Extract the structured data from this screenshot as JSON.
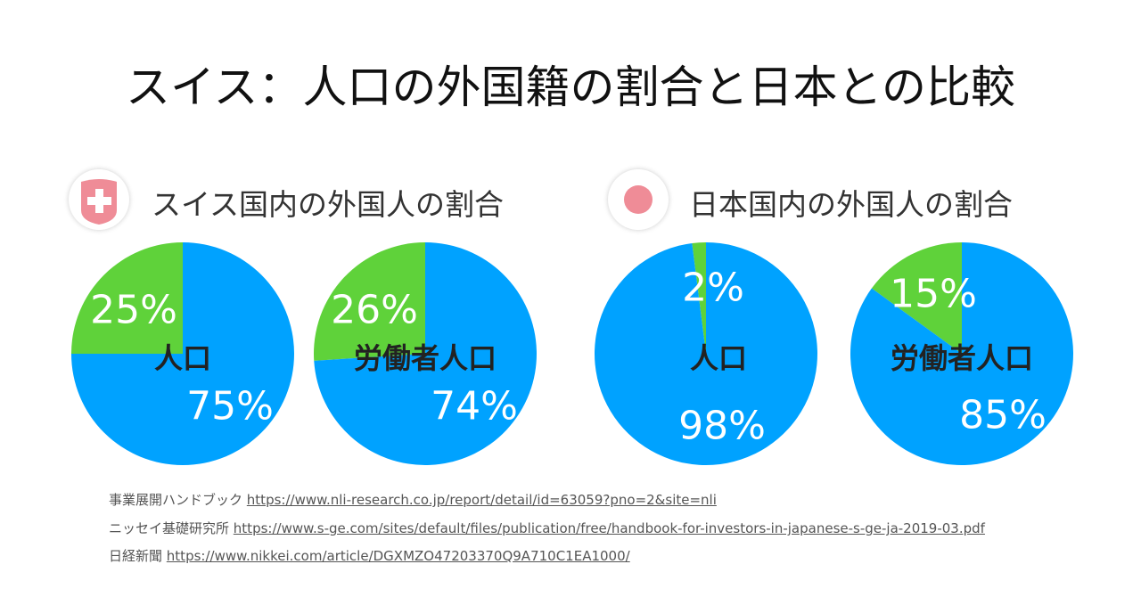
{
  "title": "スイス：人口の外国籍の割合と日本との比較",
  "colors": {
    "majority": "#00a2ff",
    "foreign": "#5fd23a",
    "flag": "#ef8c97"
  },
  "chart_data": [
    {
      "type": "pie",
      "group": "スイス国内の外国人の割合",
      "label": "人口",
      "slices": [
        {
          "value": 25,
          "label": "25%",
          "color": "#5fd23a"
        },
        {
          "value": 75,
          "label": "75%",
          "color": "#00a2ff"
        }
      ]
    },
    {
      "type": "pie",
      "group": "スイス国内の外国人の割合",
      "label": "労働者人口",
      "slices": [
        {
          "value": 26,
          "label": "26%",
          "color": "#5fd23a"
        },
        {
          "value": 74,
          "label": "74%",
          "color": "#00a2ff"
        }
      ]
    },
    {
      "type": "pie",
      "group": "日本国内の外国人の割合",
      "label": "人口",
      "slices": [
        {
          "value": 2,
          "label": "2%",
          "color": "#5fd23a"
        },
        {
          "value": 98,
          "label": "98%",
          "color": "#00a2ff"
        }
      ]
    },
    {
      "type": "pie",
      "group": "日本国内の外国人の割合",
      "label": "労働者人口",
      "slices": [
        {
          "value": 15,
          "label": "15%",
          "color": "#5fd23a"
        },
        {
          "value": 85,
          "label": "85%",
          "color": "#00a2ff"
        }
      ]
    }
  ],
  "groups": {
    "swiss": "スイス国内の外国人の割合",
    "japan": "日本国内の外国人の割合"
  },
  "sources": [
    {
      "name": "事業展開ハンドブック",
      "url": "https://www.nli-research.co.jp/report/detail/id=63059?pno=2&site=nli"
    },
    {
      "name": "ニッセイ基礎研究所",
      "url": "https://www.s-ge.com/sites/default/files/publication/free/handbook-for-investors-in-japanese-s-ge-ja-2019-03.pdf"
    },
    {
      "name": "日経新聞",
      "url": "https://www.nikkei.com/article/DGXMZO47203370Q9A710C1EA1000/"
    }
  ]
}
